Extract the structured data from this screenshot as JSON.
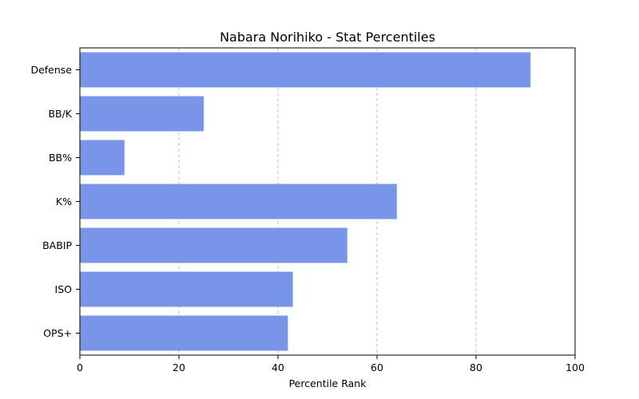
{
  "chart_data": {
    "type": "bar",
    "orientation": "horizontal",
    "title": "Nabara Norihiko - Stat Percentiles",
    "xlabel": "Percentile Rank",
    "ylabel": "",
    "categories": [
      "Defense",
      "BB/K",
      "BB%",
      "K%",
      "BABIP",
      "ISO",
      "OPS+"
    ],
    "values": [
      91,
      25,
      9,
      64,
      54,
      43,
      42
    ],
    "xlim": [
      0,
      100
    ],
    "xticks": [
      0,
      20,
      40,
      60,
      80,
      100
    ],
    "grid": "x-dashed",
    "legend": "none",
    "bar_color": "#7995ea"
  }
}
